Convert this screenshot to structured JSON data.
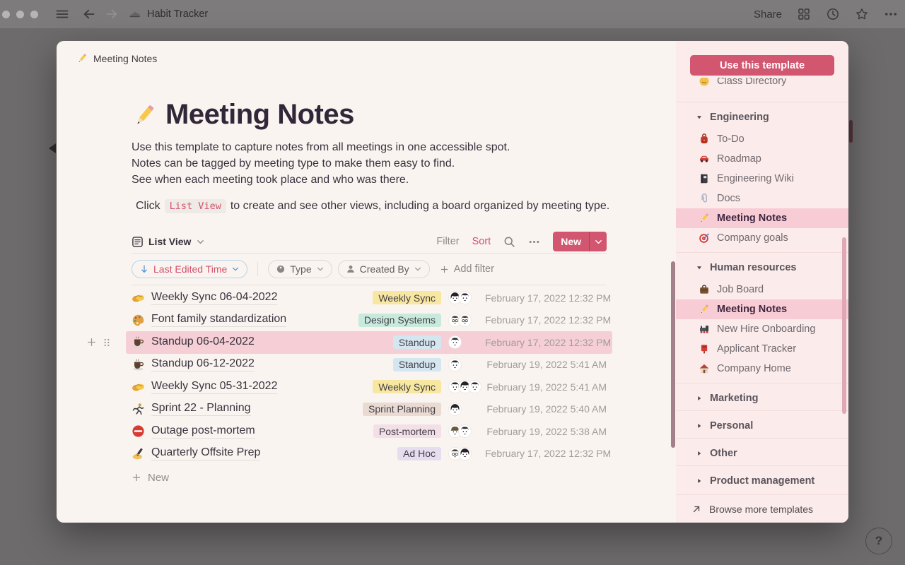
{
  "topbar": {
    "title": "Habit Tracker",
    "share_label": "Share"
  },
  "help_label": "?",
  "modal": {
    "breadcrumb_label": "Meeting Notes",
    "page_title": "Meeting Notes",
    "description_lines": [
      "Use this template to capture notes from all meetings in one accessible spot.",
      "Notes can be tagged by meeting type to make them easy to find.",
      "See when each meeting took place and who was there."
    ],
    "hint": {
      "prefix": "Click",
      "code": "List View",
      "suffix": "to create and see other views, including a board organized by meeting type."
    },
    "toolbar": {
      "view_label": "List View",
      "filter_label": "Filter",
      "sort_label": "Sort",
      "new_label": "New"
    },
    "filter_bar": {
      "sort_chip": "Last Edited Time",
      "chips": [
        {
          "icon": "tag",
          "label": "Type"
        },
        {
          "icon": "person",
          "label": "Created By"
        }
      ],
      "add_filter_label": "Add filter"
    },
    "table": {
      "new_row_label": "New",
      "rows": [
        {
          "icon": "handshake",
          "title": "Weekly Sync 06-04-2022",
          "tag": "Weekly Sync",
          "tag_color": "#f8e7a0",
          "avatars": [
            "f1",
            "m1"
          ],
          "date": "February 17, 2022 12:32 PM",
          "highlighted": false
        },
        {
          "icon": "palette",
          "title": "Font family standardization",
          "tag": "Design Systems",
          "tag_color": "#c8eadd",
          "avatars": [
            "m2",
            "m2"
          ],
          "date": "February 17, 2022 12:32 PM",
          "highlighted": false
        },
        {
          "icon": "coffee",
          "title": "Standup 06-04-2022",
          "tag": "Standup",
          "tag_color": "#d4e6f0",
          "avatars": [
            "m1"
          ],
          "date": "February 17, 2022 12:32 PM",
          "highlighted": true
        },
        {
          "icon": "coffee",
          "title": "Standup 06-12-2022",
          "tag": "Standup",
          "tag_color": "#d4e6f0",
          "avatars": [
            "m1"
          ],
          "date": "February 19, 2022 5:41 AM",
          "highlighted": false
        },
        {
          "icon": "handshake",
          "title": "Weekly Sync 05-31-2022",
          "tag": "Weekly Sync",
          "tag_color": "#f8e7a0",
          "avatars": [
            "m1",
            "f1",
            "m1"
          ],
          "date": "February 19, 2022 5:41 AM",
          "highlighted": false
        },
        {
          "icon": "runner",
          "title": "Sprint 22 - Planning",
          "tag": "Sprint Planning",
          "tag_color": "#e9dad2",
          "avatars": [
            "f1"
          ],
          "date": "February 19, 2022 5:40 AM",
          "highlighted": false
        },
        {
          "icon": "no-entry",
          "title": "Outage post-mortem",
          "tag": "Post-mortem",
          "tag_color": "#f3dfe8",
          "avatars": [
            "m3",
            "m1"
          ],
          "date": "February 19, 2022 5:38 AM",
          "highlighted": false
        },
        {
          "icon": "writing-hand",
          "title": "Quarterly Offsite Prep",
          "tag": "Ad Hoc",
          "tag_color": "#e6deef",
          "avatars": [
            "m2",
            "f1"
          ],
          "date": "February 17, 2022 12:32 PM",
          "highlighted": false
        }
      ]
    }
  },
  "sidebar": {
    "cta_label": "Use this template",
    "partial_item": {
      "icon": "smiley",
      "label": "Class Directory"
    },
    "sections": [
      {
        "label": "Engineering",
        "expanded": true,
        "items": [
          {
            "icon": "backpack",
            "label": "To-Do",
            "active": false
          },
          {
            "icon": "car",
            "label": "Roadmap",
            "active": false
          },
          {
            "icon": "notebook",
            "label": "Engineering Wiki",
            "active": false
          },
          {
            "icon": "paperclip",
            "label": "Docs",
            "active": false
          },
          {
            "icon": "pencil",
            "label": "Meeting Notes",
            "active": true
          },
          {
            "icon": "target",
            "label": "Company goals",
            "active": false
          }
        ]
      },
      {
        "label": "Human resources",
        "expanded": true,
        "items": [
          {
            "icon": "briefcase",
            "label": "Job Board",
            "active": false
          },
          {
            "icon": "pencil",
            "label": "Meeting Notes",
            "active": true
          },
          {
            "icon": "locomotive",
            "label": "New Hire Onboarding",
            "active": false
          },
          {
            "icon": "postbox",
            "label": "Applicant Tracker",
            "active": false
          },
          {
            "icon": "house",
            "label": "Company Home",
            "active": false
          }
        ]
      },
      {
        "label": "Marketing",
        "expanded": false,
        "items": []
      },
      {
        "label": "Personal",
        "expanded": false,
        "items": []
      },
      {
        "label": "Other",
        "expanded": false,
        "items": []
      },
      {
        "label": "Product management",
        "expanded": false,
        "items": []
      }
    ],
    "footer_label": "Browse more templates"
  },
  "colors": {
    "accent": "#d2566f",
    "row_highlight": "#f6ced6",
    "sidebar_highlight": "#f8ccd5",
    "sidebar_bg": "#fbebea",
    "modal_bg": "#faf4f1"
  }
}
